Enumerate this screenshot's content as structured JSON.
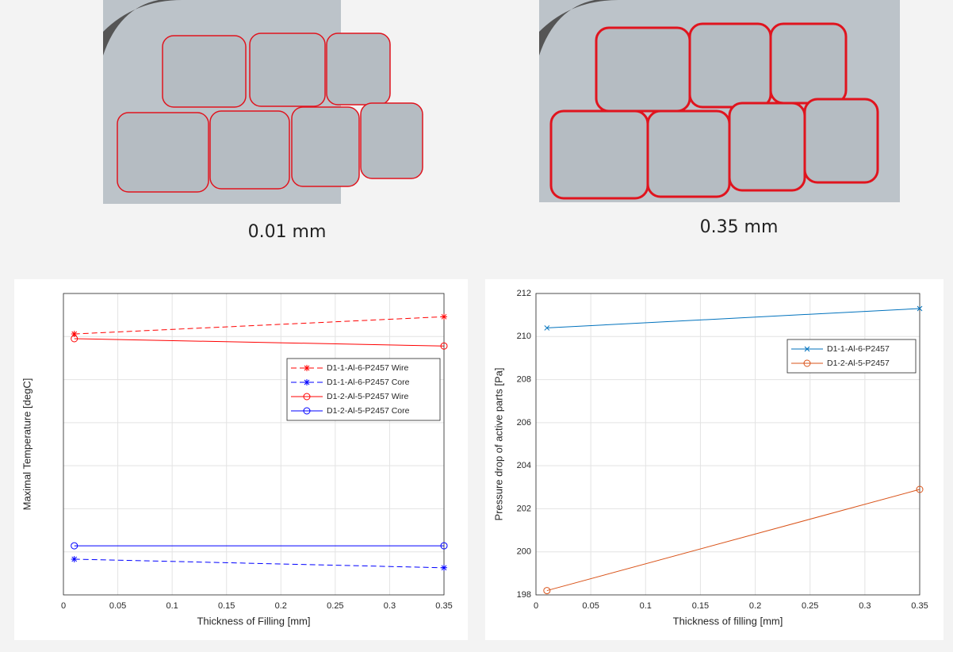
{
  "images": [
    {
      "caption": "0.01 mm"
    },
    {
      "caption": "0.35 mm"
    }
  ],
  "chart_data": [
    {
      "type": "line",
      "xlabel": "Thickness of Filling [mm]",
      "ylabel": "Maximal Temperature [degC]",
      "x": [
        0.01,
        0.35
      ],
      "xlim": [
        0,
        0.35
      ],
      "xticks": [
        0,
        0.05,
        0.1,
        0.15,
        0.2,
        0.25,
        0.3,
        0.35
      ],
      "ylim": [
        0,
        7
      ],
      "yticks": [
        0,
        1,
        2,
        3,
        4,
        5,
        6,
        7
      ],
      "ytick_labels": false,
      "grid": true,
      "legend": "upper right",
      "series": [
        {
          "name": "D1-1-Al-6-P2457 Wire",
          "color": "#ff0000",
          "dash": "dashed",
          "marker": "star",
          "values": [
            6.06,
            6.46
          ]
        },
        {
          "name": "D1-1-Al-6-P2457 Core",
          "color": "#0000ff",
          "dash": "dashed",
          "marker": "star",
          "values": [
            0.83,
            0.63
          ]
        },
        {
          "name": "D1-2-Al-5-P2457 Wire",
          "color": "#ff0000",
          "dash": "solid",
          "marker": "o",
          "values": [
            5.95,
            5.78
          ]
        },
        {
          "name": "D1-2-Al-5-P2457 Core",
          "color": "#0000ff",
          "dash": "solid",
          "marker": "o",
          "values": [
            1.14,
            1.14
          ]
        }
      ]
    },
    {
      "type": "line",
      "xlabel": "Thickness of filling [mm]",
      "ylabel": "Pressure drop of active parts [Pa]",
      "x": [
        0.01,
        0.35
      ],
      "xlim": [
        0,
        0.35
      ],
      "xticks": [
        0,
        0.05,
        0.1,
        0.15,
        0.2,
        0.25,
        0.3,
        0.35
      ],
      "ylim": [
        198,
        212
      ],
      "yticks": [
        198,
        200,
        202,
        204,
        206,
        208,
        210,
        212
      ],
      "ytick_labels": true,
      "grid": true,
      "legend": "upper right",
      "series": [
        {
          "name": "D1-1-Al-6-P2457",
          "color": "#0072bd",
          "dash": "solid",
          "marker": "x",
          "values": [
            210.4,
            211.3
          ]
        },
        {
          "name": "D1-2-Al-5-P2457",
          "color": "#d95319",
          "dash": "solid",
          "marker": "o",
          "values": [
            198.2,
            202.9
          ]
        }
      ]
    }
  ]
}
